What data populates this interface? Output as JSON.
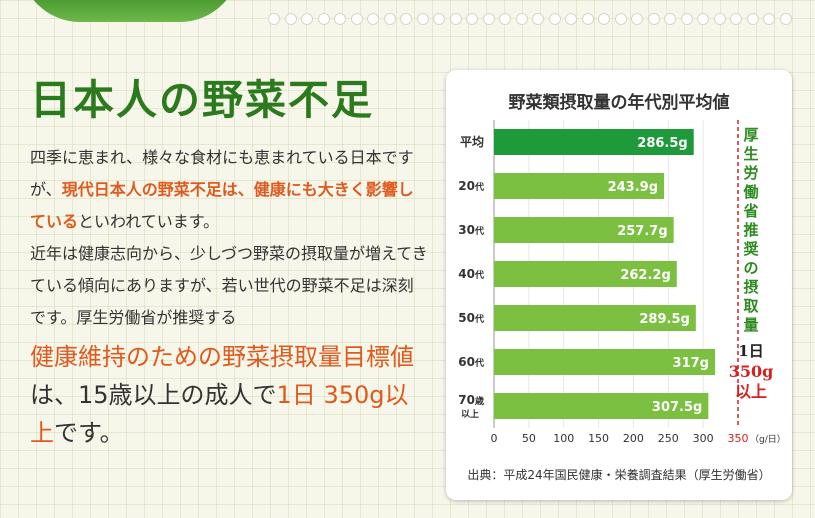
{
  "headline": "日本人の野菜不足",
  "paragraph1": {
    "pre": "四季に恵まれ、様々な食材にも恵まれている日本ですが、",
    "highlight": "現代日本人の野菜不足は、健康にも大きく影響している",
    "post": "といわれています。"
  },
  "paragraph2": "近年は健康志向から、少しづつ野菜の摂取量が増えてきている傾向にありますが、若い世代の野菜不足は深刻です。厚生労働省が推奨する",
  "paragraph3": {
    "hl1": "健康維持のための野菜摂取量目標値",
    "mid": "は、15歳以上の成人で",
    "hl2": "1日 350g以上",
    "post": "です。"
  },
  "recommendation": {
    "label": "厚生労働省推奨の摂取量",
    "amount": "1日",
    "value": "350g",
    "above": "以上"
  },
  "source": "出典：平成24年国民健康・栄養調査結果（厚生労働省）",
  "colors": {
    "green": "#2b7a1d",
    "bar": "#7cc042",
    "bar_highlight": "#1e9a3a",
    "orange": "#e05a1e",
    "red": "#d62020"
  },
  "chart_data": {
    "type": "bar",
    "orientation": "horizontal",
    "title": "野菜類摂取量の年代別平均値",
    "categories": [
      {
        "label": "平均",
        "sub": ""
      },
      {
        "label": "20",
        "sub": "代"
      },
      {
        "label": "30",
        "sub": "代"
      },
      {
        "label": "40",
        "sub": "代"
      },
      {
        "label": "50",
        "sub": "代"
      },
      {
        "label": "60",
        "sub": "代"
      },
      {
        "label": "70",
        "sub": "歳",
        "sub2": "以上"
      }
    ],
    "values": [
      286.5,
      243.9,
      257.7,
      262.2,
      289.5,
      317,
      307.5
    ],
    "value_labels": [
      "286.5g",
      "243.9g",
      "257.7g",
      "262.2g",
      "289.5g",
      "317g",
      "307.5g"
    ],
    "highlight_index": 0,
    "xlim": [
      0,
      350
    ],
    "xticks": [
      0,
      50,
      100,
      150,
      200,
      250,
      300
    ],
    "reference_line": {
      "value": 350,
      "label": "350",
      "unit": "（g/日）"
    },
    "grid": true
  }
}
